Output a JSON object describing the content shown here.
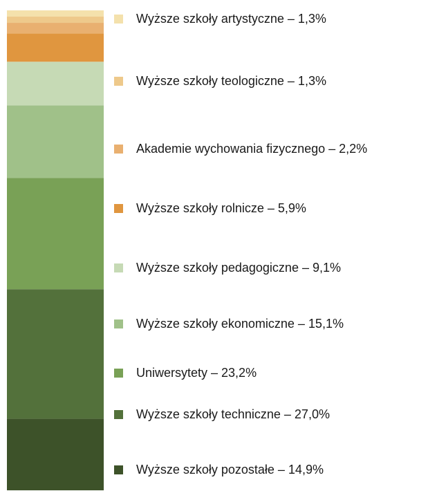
{
  "chart_data": {
    "type": "bar",
    "stacked": true,
    "series": [
      {
        "name": "Wyższe szkoły pozostałe – 14,9%",
        "color": "#3d5229",
        "values": [
          14.9
        ]
      },
      {
        "name": "Wyższe szkoły techniczne – 27,0%",
        "color": "#53713b",
        "values": [
          27.0
        ]
      },
      {
        "name": "Uniwersytety – 23,2%",
        "color": "#79a156",
        "values": [
          23.2
        ]
      },
      {
        "name": "Wyższe szkoły ekonomiczne – 15,1%",
        "color": "#a0c189",
        "values": [
          15.1
        ]
      },
      {
        "name": "Wyższe szkoły pedagogiczne – 9,1%",
        "color": "#c6dab5",
        "values": [
          9.1
        ]
      },
      {
        "name": "Wyższe szkoły rolnicze – 5,9%",
        "color": "#e0963f",
        "values": [
          5.9
        ]
      },
      {
        "name": "Akademie wychowania fizycznego – 2,2%",
        "color": "#e9b070",
        "values": [
          2.2
        ]
      },
      {
        "name": "Wyższe szkoły teologiczne – 1,3%",
        "color": "#eec98b",
        "values": [
          1.3
        ]
      },
      {
        "name": "Wyższe szkoły artystyczne – 1,3%",
        "color": "#f4e1ac",
        "values": [
          1.3
        ]
      }
    ]
  }
}
